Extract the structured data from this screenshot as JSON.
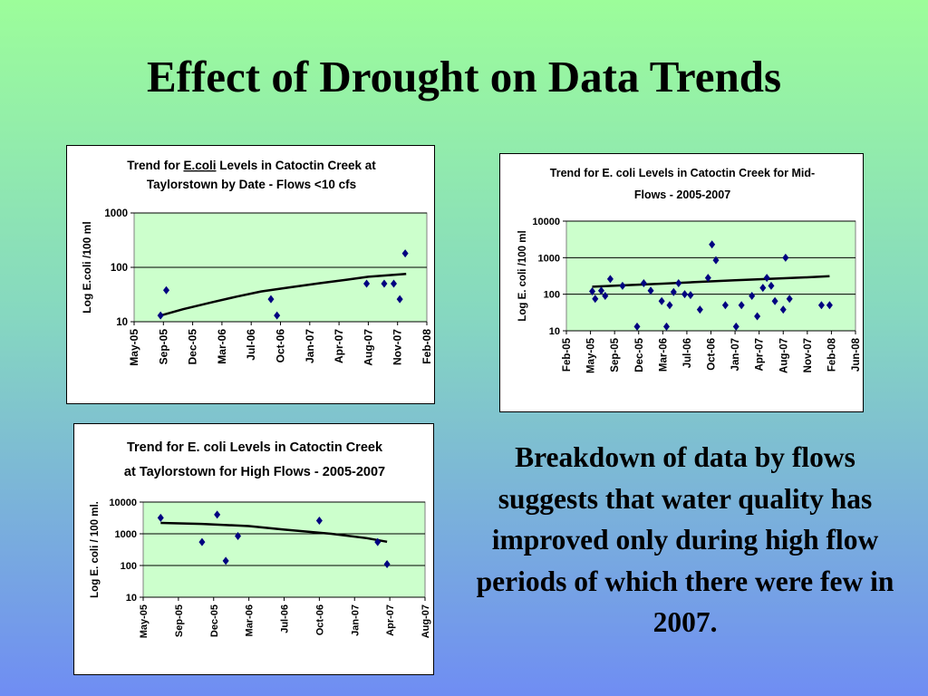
{
  "slide": {
    "title": "Effect of Drought on Data Trends",
    "caption": "Breakdown of data by flows suggests that water quality has improved only during high flow periods of which there were few in 2007."
  },
  "colors": {
    "plot_bg": "#ccffcc",
    "marker": "#000080",
    "trend": "#000000"
  },
  "chart_data": [
    {
      "type": "scatter",
      "title_parts": [
        "Trend for ",
        "E.coli",
        " Levels in Catoctin Creek at",
        "Taylorstown by Date - Flows <10 cfs"
      ],
      "ylabel": "Log E.coli /100 ml",
      "xlabel": "",
      "y_scale": "log",
      "y_ticks": [
        "10",
        "100",
        "1000"
      ],
      "ylim": [
        10,
        1000
      ],
      "x_ticks": [
        "May-05",
        "Sep-05",
        "Dec-05",
        "Mar-06",
        "Jul-06",
        "Oct-06",
        "Jan-07",
        "Apr-07",
        "Aug-07",
        "Nov-07",
        "Feb-08"
      ],
      "x_range_ticks": [
        0,
        10
      ],
      "grid": "horizontal",
      "legend": "none",
      "series": [
        {
          "x": [
            "2005-08-20",
            "2005-09-10",
            "2006-09-01",
            "2006-09-20",
            "2007-07-25",
            "2007-09-20",
            "2007-10-20",
            "2007-11-08",
            "2007-11-25"
          ],
          "y": [
            13,
            38,
            26,
            13,
            50,
            50,
            50,
            26,
            180
          ]
        }
      ],
      "trendline": {
        "x": [
          "2005-08-20",
          "2005-11-01",
          "2006-02-01",
          "2006-05-01",
          "2006-08-01",
          "2006-11-01",
          "2007-02-01",
          "2007-05-01",
          "2007-08-01",
          "2007-11-28"
        ],
        "y": [
          13,
          17,
          23,
          29,
          36,
          43,
          51,
          59,
          67,
          76
        ]
      }
    },
    {
      "type": "scatter",
      "title_parts": [
        "Trend for E. coli Levels in Catoctin Creek for Mid-",
        "Flows - 2005-2007"
      ],
      "ylabel": "Log E. coli /100 ml",
      "xlabel": "",
      "y_scale": "log",
      "y_ticks": [
        "10",
        "100",
        "1000",
        "10000"
      ],
      "ylim": [
        10,
        10000
      ],
      "x_ticks": [
        "Feb-05",
        "May-05",
        "Sep-05",
        "Dec-05",
        "Mar-06",
        "Jul-06",
        "Oct-06",
        "Jan-07",
        "Apr-07",
        "Aug-07",
        "Nov-07",
        "Feb-08",
        "Jun-08"
      ],
      "x_range_ticks": [
        0,
        12
      ],
      "grid": "horizontal",
      "legend": "none",
      "series": [
        {
          "x": [
            "2005-05-10",
            "2005-05-25",
            "2005-06-25",
            "2005-07-15",
            "2005-08-10",
            "2005-10-01",
            "2005-11-25",
            "2005-12-20",
            "2006-01-15",
            "2006-02-25",
            "2006-03-20",
            "2006-04-05",
            "2006-04-25",
            "2006-05-20",
            "2006-06-20",
            "2006-07-15",
            "2006-08-20",
            "2006-09-20",
            "2006-10-05",
            "2006-10-20",
            "2006-11-25",
            "2007-01-05",
            "2007-01-25",
            "2007-03-05",
            "2007-03-25",
            "2007-04-20",
            "2007-05-10",
            "2007-06-01",
            "2007-06-20",
            "2007-08-01",
            "2007-08-10",
            "2007-08-25",
            "2007-12-25",
            "2008-01-25"
          ],
          "y": [
            120,
            75,
            125,
            90,
            260,
            170,
            13,
            200,
            125,
            65,
            13,
            50,
            115,
            200,
            100,
            95,
            38,
            280,
            2300,
            850,
            50,
            13,
            50,
            90,
            25,
            150,
            280,
            170,
            65,
            38,
            1000,
            75,
            50,
            50
          ]
        }
      ],
      "trendline": {
        "x": [
          "2005-05-10",
          "2005-10-01",
          "2006-03-01",
          "2006-08-01",
          "2007-01-01",
          "2007-06-01",
          "2007-11-01",
          "2008-01-25"
        ],
        "y": [
          160,
          175,
          195,
          215,
          240,
          265,
          290,
          310
        ]
      }
    },
    {
      "type": "scatter",
      "title_parts": [
        "Trend for E. coli Levels in Catoctin Creek",
        "at Taylorstown for High Flows - 2005-2007"
      ],
      "ylabel": "Log E. coli / 100 ml.",
      "xlabel": "",
      "y_scale": "log",
      "y_ticks": [
        "10",
        "100",
        "1000",
        "10000"
      ],
      "ylim": [
        10,
        10000
      ],
      "x_ticks": [
        "May-05",
        "Sep-05",
        "Dec-05",
        "Mar-06",
        "Jul-06",
        "Oct-06",
        "Jan-07",
        "Apr-07",
        "Aug-07"
      ],
      "x_range_ticks": [
        0,
        8
      ],
      "grid": "horizontal",
      "legend": "none",
      "series": [
        {
          "x": [
            "2005-07-01",
            "2005-11-01",
            "2005-12-10",
            "2006-01-01",
            "2006-02-01",
            "2006-10-01",
            "2007-03-01",
            "2007-03-25"
          ],
          "y": [
            3200,
            550,
            4000,
            140,
            850,
            2600,
            550,
            110
          ]
        }
      ],
      "trendline": {
        "x": [
          "2005-07-01",
          "2005-11-01",
          "2006-03-01",
          "2006-07-01",
          "2006-11-01",
          "2007-02-01",
          "2007-03-25"
        ],
        "y": [
          2200,
          2050,
          1750,
          1350,
          1000,
          730,
          560
        ]
      }
    }
  ]
}
